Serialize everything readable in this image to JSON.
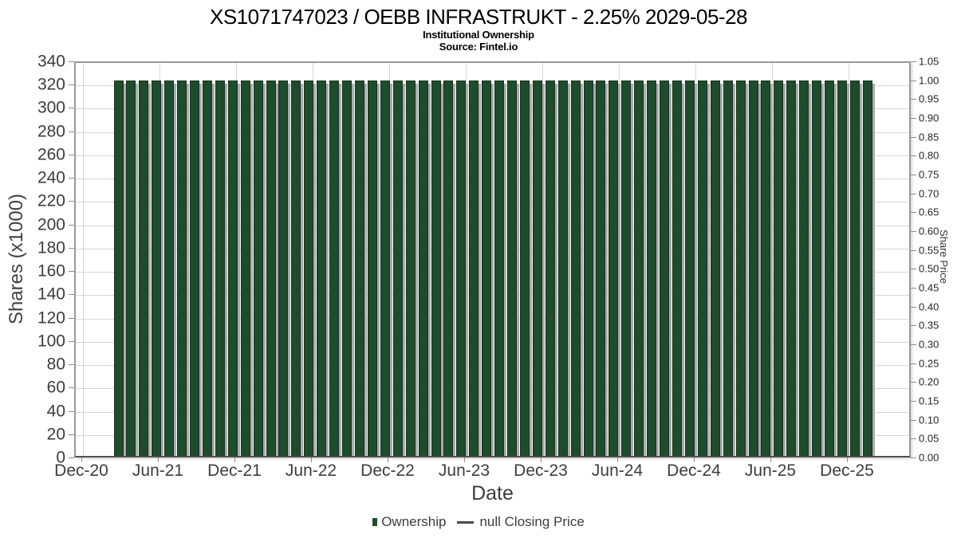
{
  "header": {
    "title": "XS1071747023 / OEBB INFRASTRUKT - 2.25% 2029-05-28",
    "subtitle": "Institutional Ownership",
    "source": "Source: Fintel.io"
  },
  "axes": {
    "y_left": {
      "label": "Shares (x1000)",
      "min": 0,
      "max": 340,
      "ticks": [
        0,
        20,
        40,
        60,
        80,
        100,
        120,
        140,
        160,
        180,
        200,
        220,
        240,
        260,
        280,
        300,
        320,
        340
      ]
    },
    "y_right": {
      "label": "Share Price",
      "min": 0,
      "max": 1.05,
      "ticks": [
        "0.00",
        "0.05",
        "0.10",
        "0.15",
        "0.20",
        "0.25",
        "0.30",
        "0.35",
        "0.40",
        "0.45",
        "0.50",
        "0.55",
        "0.60",
        "0.65",
        "0.70",
        "0.75",
        "0.80",
        "0.85",
        "0.90",
        "0.95",
        "1.00",
        "1.05"
      ]
    },
    "x": {
      "label": "Date",
      "ticks": [
        "Dec-20",
        "Jun-21",
        "Dec-21",
        "Jun-22",
        "Dec-22",
        "Jun-23",
        "Dec-23",
        "Jun-24",
        "Dec-24",
        "Jun-25",
        "Dec-25"
      ]
    }
  },
  "legend": {
    "items": [
      {
        "label": "Ownership",
        "marker": "square",
        "color": "#1f4c2c"
      },
      {
        "label": "null Closing Price",
        "marker": "line",
        "color": "#4a4a4a"
      }
    ]
  },
  "colors": {
    "bar_fill": "#1f4c2c",
    "bar_edge": "#123520",
    "bar_shadow": "#ababab",
    "grid_line": "#d7d7d7",
    "grid_border": "#999999",
    "tick_text": "#3d3d3d"
  },
  "chart_data": {
    "type": "bar",
    "title": "XS1071747023 / OEBB INFRASTRUKT - 2.25% 2029-05-28",
    "subtitle": "Institutional Ownership",
    "source": "Source: Fintel.io",
    "xlabel": "Date",
    "ylabel_left": "Shares (x1000)",
    "ylabel_right": "Share Price",
    "ylim_left": [
      0,
      340
    ],
    "ylim_right": [
      0,
      1.05
    ],
    "grid": true,
    "legend_position": "bottom",
    "categories": [
      "Mar-21",
      "Apr-21",
      "May-21",
      "Jun-21",
      "Jul-21",
      "Aug-21",
      "Sep-21",
      "Oct-21",
      "Nov-21",
      "Dec-21",
      "Jan-22",
      "Feb-22",
      "Mar-22",
      "Apr-22",
      "May-22",
      "Jun-22",
      "Jul-22",
      "Aug-22",
      "Sep-22",
      "Oct-22",
      "Nov-22",
      "Dec-22",
      "Jan-23",
      "Feb-23",
      "Mar-23",
      "Apr-23",
      "May-23",
      "Jun-23",
      "Jul-23",
      "Aug-23",
      "Sep-23",
      "Oct-23",
      "Nov-23",
      "Dec-23",
      "Jan-24",
      "Feb-24",
      "Mar-24",
      "Apr-24",
      "May-24",
      "Jun-24",
      "Jul-24",
      "Aug-24",
      "Sep-24",
      "Oct-24",
      "Nov-24",
      "Dec-24",
      "Jan-25",
      "Feb-25",
      "Mar-25",
      "Apr-25",
      "May-25",
      "Jun-25",
      "Jul-25",
      "Aug-25",
      "Sep-25",
      "Oct-25",
      "Nov-25",
      "Dec-25",
      "Jan-26",
      "Feb-26"
    ],
    "series": [
      {
        "name": "Ownership",
        "axis": "left",
        "type": "bar",
        "color": "#1f4c2c",
        "values": [
          325,
          325,
          325,
          325,
          325,
          325,
          325,
          325,
          325,
          325,
          325,
          325,
          325,
          325,
          325,
          325,
          325,
          325,
          325,
          325,
          325,
          325,
          325,
          325,
          325,
          325,
          325,
          325,
          325,
          325,
          325,
          325,
          325,
          325,
          325,
          325,
          325,
          325,
          325,
          325,
          325,
          325,
          325,
          325,
          325,
          325,
          325,
          325,
          325,
          325,
          325,
          325,
          325,
          325,
          325,
          325,
          325,
          325,
          325,
          325
        ]
      },
      {
        "name": "null Closing Price",
        "axis": "right",
        "type": "line",
        "color": "#4a4a4a",
        "values": []
      }
    ]
  }
}
